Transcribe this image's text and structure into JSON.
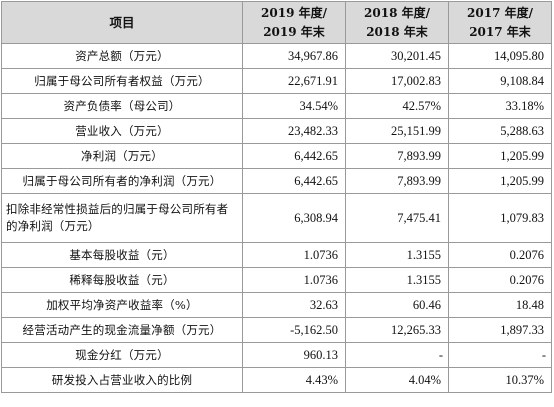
{
  "headers": {
    "item": "项目",
    "y2019": [
      "2019 年度/",
      "2019 年末"
    ],
    "y2018": [
      "2018 年度/",
      "2018 年末"
    ],
    "y2017": [
      "2017 年度/",
      "2017 年末"
    ]
  },
  "rows": [
    {
      "label": "资产总额（万元）",
      "y2019": "34,967.86",
      "y2018": "30,201.45",
      "y2017": "14,095.80"
    },
    {
      "label": "归属于母公司所有者权益（万元）",
      "y2019": "22,671.91",
      "y2018": "17,002.83",
      "y2017": "9,108.84"
    },
    {
      "label": "资产负债率（母公司）",
      "y2019": "34.54%",
      "y2018": "42.57%",
      "y2017": "33.18%"
    },
    {
      "label": "营业收入（万元）",
      "y2019": "23,482.33",
      "y2018": "25,151.99",
      "y2017": "5,288.63"
    },
    {
      "label": "净利润（万元）",
      "y2019": "6,442.65",
      "y2018": "7,893.99",
      "y2017": "1,205.99"
    },
    {
      "label": "归属于母公司所有者的净利润（万元）",
      "y2019": "6,442.65",
      "y2018": "7,893.99",
      "y2017": "1,205.99"
    },
    {
      "label": "扣除非经常性损益后的归属于母公司所有者的净利润（万元）",
      "y2019": "6,308.94",
      "y2018": "7,475.41",
      "y2017": "1,079.83"
    },
    {
      "label": "基本每股收益（元）",
      "y2019": "1.0736",
      "y2018": "1.3155",
      "y2017": "0.2076"
    },
    {
      "label": "稀释每股收益（元）",
      "y2019": "1.0736",
      "y2018": "1.3155",
      "y2017": "0.2076"
    },
    {
      "label": "加权平均净资产收益率（%）",
      "y2019": "32.63",
      "y2018": "60.46",
      "y2017": "18.48"
    },
    {
      "label": "经营活动产生的现金流量净额（万元）",
      "y2019": "-5,162.50",
      "y2018": "12,265.33",
      "y2017": "1,897.33"
    },
    {
      "label": "现金分红（万元）",
      "y2019": "960.13",
      "y2018": "-",
      "y2017": "-"
    },
    {
      "label": "研发投入占营业收入的比例",
      "y2019": "4.43%",
      "y2018": "4.04%",
      "y2017": "10.37%"
    }
  ]
}
